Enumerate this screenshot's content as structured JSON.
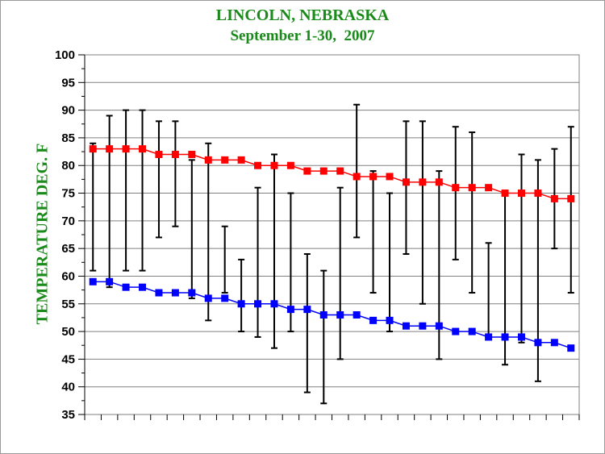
{
  "chart_data": {
    "type": "line",
    "title": "LINCOLN, NEBRASKA",
    "subtitle": "September 1-30,  2007",
    "ylabel": "TEMPERATURE DEG. F",
    "xlabel": "",
    "ylim": [
      35,
      100
    ],
    "yticks": [
      35,
      40,
      45,
      50,
      55,
      60,
      65,
      70,
      75,
      80,
      85,
      90,
      95,
      100
    ],
    "grid": true,
    "x": [
      1,
      2,
      3,
      4,
      5,
      6,
      7,
      8,
      9,
      10,
      11,
      12,
      13,
      14,
      15,
      16,
      17,
      18,
      19,
      20,
      21,
      22,
      23,
      24,
      25,
      26,
      27,
      28,
      29,
      30
    ],
    "series": [
      {
        "color": "#ff0000",
        "values": [
          83,
          83,
          83,
          83,
          82,
          82,
          82,
          81,
          81,
          81,
          80,
          80,
          80,
          79,
          79,
          79,
          78,
          78,
          78,
          77,
          77,
          77,
          76,
          76,
          76,
          75,
          75,
          75,
          74,
          74
        ]
      },
      {
        "color": "#0000ff",
        "values": [
          59,
          59,
          58,
          58,
          57,
          57,
          57,
          56,
          56,
          55,
          55,
          55,
          54,
          54,
          53,
          53,
          53,
          52,
          52,
          51,
          51,
          51,
          50,
          50,
          49,
          49,
          49,
          48,
          48,
          47
        ]
      }
    ],
    "observed_range": {
      "color": "#000000",
      "high": [
        84,
        89,
        90,
        90,
        88,
        88,
        81,
        84,
        69,
        63,
        76,
        82,
        75,
        64,
        61,
        76,
        91,
        79,
        75,
        88,
        88,
        79,
        87,
        86,
        66,
        75,
        82,
        81,
        83,
        87
      ],
      "low": [
        61,
        58,
        61,
        61,
        67,
        69,
        56,
        52,
        57,
        50,
        49,
        47,
        50,
        39,
        37,
        45,
        67,
        57,
        50,
        64,
        55,
        45,
        63,
        57,
        49,
        44,
        48,
        41,
        65,
        57
      ]
    }
  }
}
